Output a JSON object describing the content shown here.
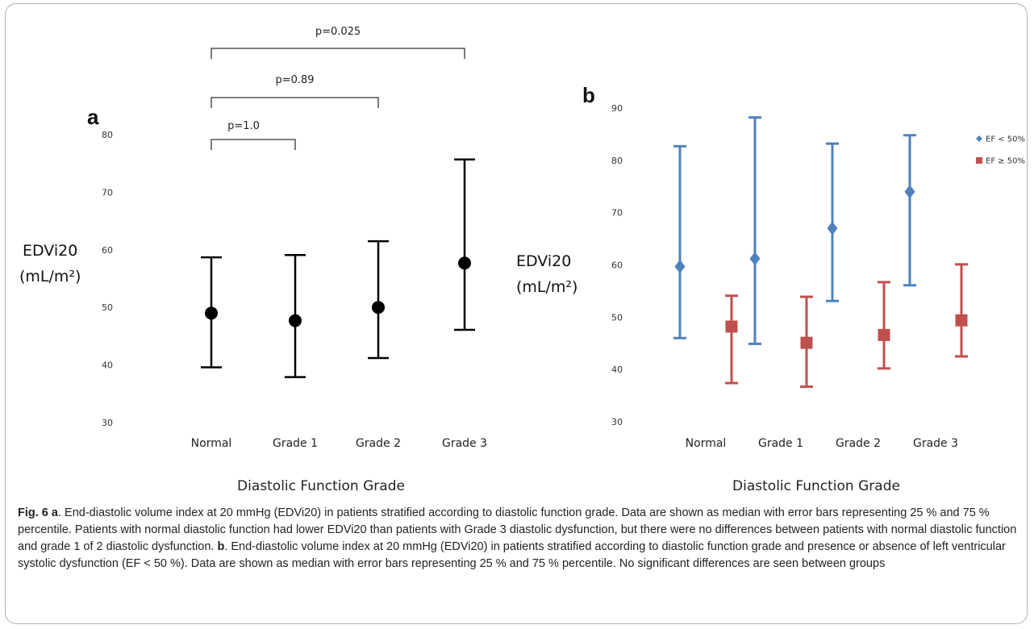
{
  "chart_data": [
    {
      "type": "errorbar",
      "panel_label": "a",
      "ylabel_line1": "EDVi20",
      "ylabel_line2": "(mL/m²)",
      "xlabel": "Diastolic Function Grade",
      "ylim": [
        30,
        80
      ],
      "yticks": [
        "30",
        "40",
        "50",
        "60",
        "70",
        "80"
      ],
      "categories": [
        "Normal",
        "Grade 1",
        "Grade 2",
        "Grade 3"
      ],
      "series": [
        {
          "color": "#000000",
          "marker": "circle",
          "median": [
            49,
            47.7,
            50,
            57.7
          ],
          "lower": [
            39.6,
            37.9,
            41.2,
            46.1
          ],
          "upper": [
            58.7,
            59.1,
            61.5,
            75.7
          ]
        }
      ],
      "comparisons": [
        {
          "from": "Normal",
          "to": "Grade 1",
          "label": "p=1.0"
        },
        {
          "from": "Normal",
          "to": "Grade 2",
          "label": "p=0.89"
        },
        {
          "from": "Normal",
          "to": "Grade 3",
          "label": "p=0.025"
        }
      ]
    },
    {
      "type": "errorbar",
      "panel_label": "b",
      "ylabel_line1": "EDVi20",
      "ylabel_line2": "(mL/m²)",
      "xlabel": "Diastolic Function Grade",
      "ylim": [
        30,
        90
      ],
      "yticks": [
        "30",
        "40",
        "50",
        "60",
        "70",
        "80",
        "90"
      ],
      "categories": [
        "Normal",
        "Grade 1",
        "Grade 2",
        "Grade 3"
      ],
      "legend_position": "top-right",
      "series": [
        {
          "name": "EF < 50%",
          "color": "#4f81bd",
          "marker": "diamond",
          "median": [
            59.7,
            61.2,
            67,
            74
          ],
          "lower": [
            46,
            44.9,
            53.1,
            56.1
          ],
          "upper": [
            82.7,
            88.2,
            83.2,
            84.8
          ]
        },
        {
          "name": "EF ≥ 50%",
          "color": "#c0504d",
          "marker": "square",
          "median": [
            48.2,
            45.1,
            46.6,
            49.4
          ],
          "lower": [
            37.4,
            36.7,
            40.2,
            42.5
          ],
          "upper": [
            54.1,
            53.9,
            56.7,
            60.1
          ]
        }
      ]
    }
  ],
  "caption": {
    "fig_label": "Fig. 6",
    "part_a_label": "a",
    "part_a_text": ". End-diastolic volume index at 20 mmHg (EDVi20) in patients stratified according to diastolic function grade. Data are shown as median with error bars representing 25 % and 75 % percentile. Patients with normal diastolic function had lower EDVi20 than patients with Grade 3 diastolic dysfunction, but there were no differences between patients with normal diastolic function and grade 1 of 2 diastolic dysfunction. ",
    "part_b_label": "b",
    "part_b_text": ". End-diastolic volume index at 20 mmHg (EDVi20) in patients stratified according to diastolic function grade and presence or absence of left ventricular systolic dysfunction (EF < 50 %). Data are shown as median with error bars representing 25 % and 75 % percentile. No significant differences are seen between groups"
  }
}
